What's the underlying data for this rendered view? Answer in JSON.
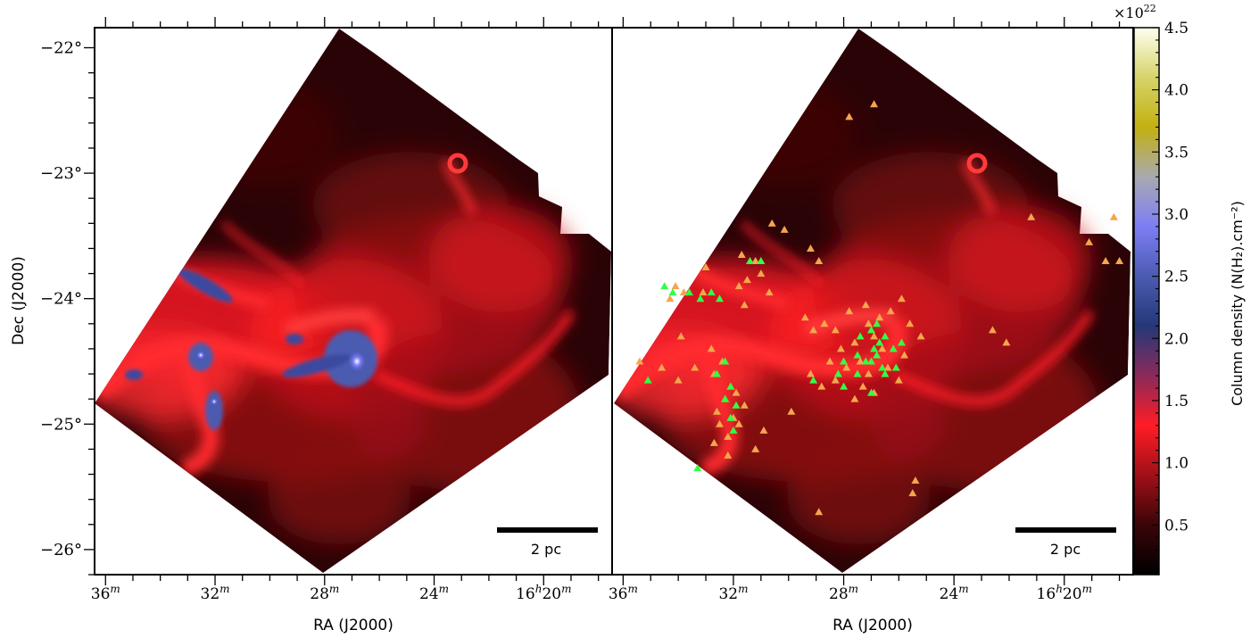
{
  "chart_data": {
    "type": "heatmap",
    "panels": [
      {
        "name": "left",
        "overlay": "none"
      },
      {
        "name": "right",
        "overlay": "source markers"
      }
    ],
    "xlabel": "RA (J2000)",
    "ylabel": "Dec (J2000)",
    "x_ticks": [
      {
        "main": "36",
        "sup": "m",
        "pre": ""
      },
      {
        "main": "32",
        "sup": "m",
        "pre": ""
      },
      {
        "main": "28",
        "sup": "m",
        "pre": ""
      },
      {
        "main": "24",
        "sup": "m",
        "pre": ""
      },
      {
        "main": "20",
        "sup": "m",
        "pre": "16",
        "presup": "h"
      }
    ],
    "x_ticks_minutes": [
      36,
      32,
      28,
      24,
      20
    ],
    "y_ticks": [
      {
        "label": "−22°",
        "dec": -22
      },
      {
        "label": "−23°",
        "dec": -23
      },
      {
        "label": "−24°",
        "dec": -24
      },
      {
        "label": "−25°",
        "dec": -25
      },
      {
        "label": "−26°",
        "dec": -26
      }
    ],
    "dec_range": [
      -26.2,
      -21.84
    ],
    "ra_range_minutes": [
      36.4,
      17.5
    ],
    "colorbar": {
      "label": "Column density (N(H₂).cm⁻²)",
      "multiplier": "×10",
      "multiplier_exp": "22",
      "range": [
        0.1,
        4.5
      ],
      "ticks": [
        "0.5",
        "1.0",
        "1.5",
        "2.0",
        "2.5",
        "3.0",
        "3.5",
        "4.0",
        "4.5"
      ],
      "tick_values": [
        0.5,
        1.0,
        1.5,
        2.0,
        2.5,
        3.0,
        3.5,
        4.0,
        4.5
      ],
      "colors": [
        "#000000",
        "#3a0508",
        "#a01018",
        "#ff1c25",
        "#8a2a5a",
        "#243878",
        "#4b5bb0",
        "#7d7df5",
        "#a9a9b0",
        "#c3b011",
        "#d6d46a",
        "#fffff0"
      ]
    },
    "scalebar": {
      "label": "2 pc"
    },
    "series": [
      {
        "color": "#f4a64d",
        "marker": "triangle"
      },
      {
        "color": "#33ff44",
        "marker": "triangle"
      }
    ],
    "orange_sources": [
      [
        -23.45,
        30.15
      ],
      [
        -23.4,
        30.6
      ],
      [
        -23.6,
        29.2
      ],
      [
        -23.7,
        28.9
      ],
      [
        -23.75,
        33.0
      ],
      [
        -23.95,
        33.1
      ],
      [
        -23.85,
        31.5
      ],
      [
        -23.65,
        31.7
      ],
      [
        -23.7,
        31.2
      ],
      [
        -23.9,
        31.8
      ],
      [
        -24.05,
        31.6
      ],
      [
        -24.15,
        29.4
      ],
      [
        -24.25,
        29.1
      ],
      [
        -24.2,
        28.7
      ],
      [
        -24.1,
        27.8
      ],
      [
        -24.05,
        27.2
      ],
      [
        -24.1,
        26.3
      ],
      [
        -24.0,
        25.9
      ],
      [
        -24.2,
        25.6
      ],
      [
        -24.3,
        25.2
      ],
      [
        -24.4,
        26.6
      ],
      [
        -24.5,
        27.4
      ],
      [
        -24.55,
        27.9
      ],
      [
        -24.65,
        28.3
      ],
      [
        -24.7,
        28.8
      ],
      [
        -24.6,
        29.2
      ],
      [
        -24.75,
        26.9
      ],
      [
        -24.8,
        27.6
      ],
      [
        -24.65,
        26.0
      ],
      [
        -24.45,
        25.8
      ],
      [
        -24.35,
        27.6
      ],
      [
        -24.25,
        28.3
      ],
      [
        -24.4,
        28.1
      ],
      [
        -24.5,
        28.5
      ],
      [
        -24.3,
        26.9
      ],
      [
        -24.2,
        27.1
      ],
      [
        -24.15,
        26.7
      ],
      [
        -24.6,
        27.1
      ],
      [
        -24.7,
        27.3
      ],
      [
        -24.55,
        26.4
      ],
      [
        -24.5,
        32.4
      ],
      [
        -24.6,
        32.7
      ],
      [
        -24.7,
        32.1
      ],
      [
        -24.8,
        32.3
      ],
      [
        -24.9,
        32.6
      ],
      [
        -25.0,
        32.5
      ],
      [
        -25.1,
        32.2
      ],
      [
        -25.15,
        32.7
      ],
      [
        -25.0,
        31.8
      ],
      [
        -24.85,
        31.6
      ],
      [
        -24.75,
        31.9
      ],
      [
        -24.95,
        32.0
      ],
      [
        -24.4,
        32.8
      ],
      [
        -24.55,
        33.4
      ],
      [
        -24.55,
        34.6
      ],
      [
        -24.5,
        35.4
      ],
      [
        -24.65,
        34.0
      ],
      [
        -24.3,
        33.9
      ],
      [
        -24.0,
        34.3
      ],
      [
        -23.95,
        33.8
      ],
      [
        -23.9,
        34.1
      ],
      [
        -23.8,
        31.0
      ],
      [
        -23.95,
        30.7
      ],
      [
        -24.35,
        22.1
      ],
      [
        -24.25,
        22.6
      ],
      [
        -23.35,
        21.2
      ],
      [
        -23.55,
        19.1
      ],
      [
        -23.7,
        18.5
      ],
      [
        -23.7,
        18.0
      ],
      [
        -25.45,
        25.4
      ],
      [
        -25.55,
        25.5
      ],
      [
        -25.7,
        28.9
      ],
      [
        -22.45,
        26.9
      ],
      [
        -22.55,
        27.8
      ],
      [
        -25.25,
        32.2
      ],
      [
        -25.2,
        31.2
      ],
      [
        -24.9,
        29.9
      ],
      [
        -25.05,
        30.9
      ],
      [
        -23.35,
        18.2
      ]
    ],
    "green_sources": [
      [
        -23.9,
        34.5
      ],
      [
        -23.95,
        34.2
      ],
      [
        -23.95,
        33.6
      ],
      [
        -24.0,
        33.2
      ],
      [
        -23.95,
        32.8
      ],
      [
        -24.0,
        32.5
      ],
      [
        -23.7,
        31.4
      ],
      [
        -24.3,
        27.4
      ],
      [
        -24.25,
        27.0
      ],
      [
        -24.35,
        26.7
      ],
      [
        -24.4,
        26.9
      ],
      [
        -24.5,
        27.2
      ],
      [
        -24.45,
        26.8
      ],
      [
        -24.6,
        27.5
      ],
      [
        -24.55,
        26.6
      ],
      [
        -24.5,
        27.0
      ],
      [
        -24.3,
        26.5
      ],
      [
        -24.2,
        26.8
      ],
      [
        -24.65,
        29.1
      ],
      [
        -24.6,
        28.2
      ],
      [
        -24.7,
        28.0
      ],
      [
        -24.5,
        28.0
      ],
      [
        -24.4,
        26.2
      ],
      [
        -24.35,
        25.9
      ],
      [
        -24.6,
        26.5
      ],
      [
        -24.75,
        27.0
      ],
      [
        -24.45,
        27.5
      ],
      [
        -24.55,
        26.1
      ],
      [
        -24.85,
        31.9
      ],
      [
        -24.95,
        32.1
      ],
      [
        -25.05,
        32.0
      ],
      [
        -24.7,
        32.1
      ],
      [
        -24.8,
        32.3
      ],
      [
        -24.6,
        32.6
      ],
      [
        -24.5,
        32.3
      ],
      [
        -24.65,
        35.1
      ],
      [
        -25.35,
        33.3
      ],
      [
        -23.7,
        31.0
      ]
    ]
  }
}
